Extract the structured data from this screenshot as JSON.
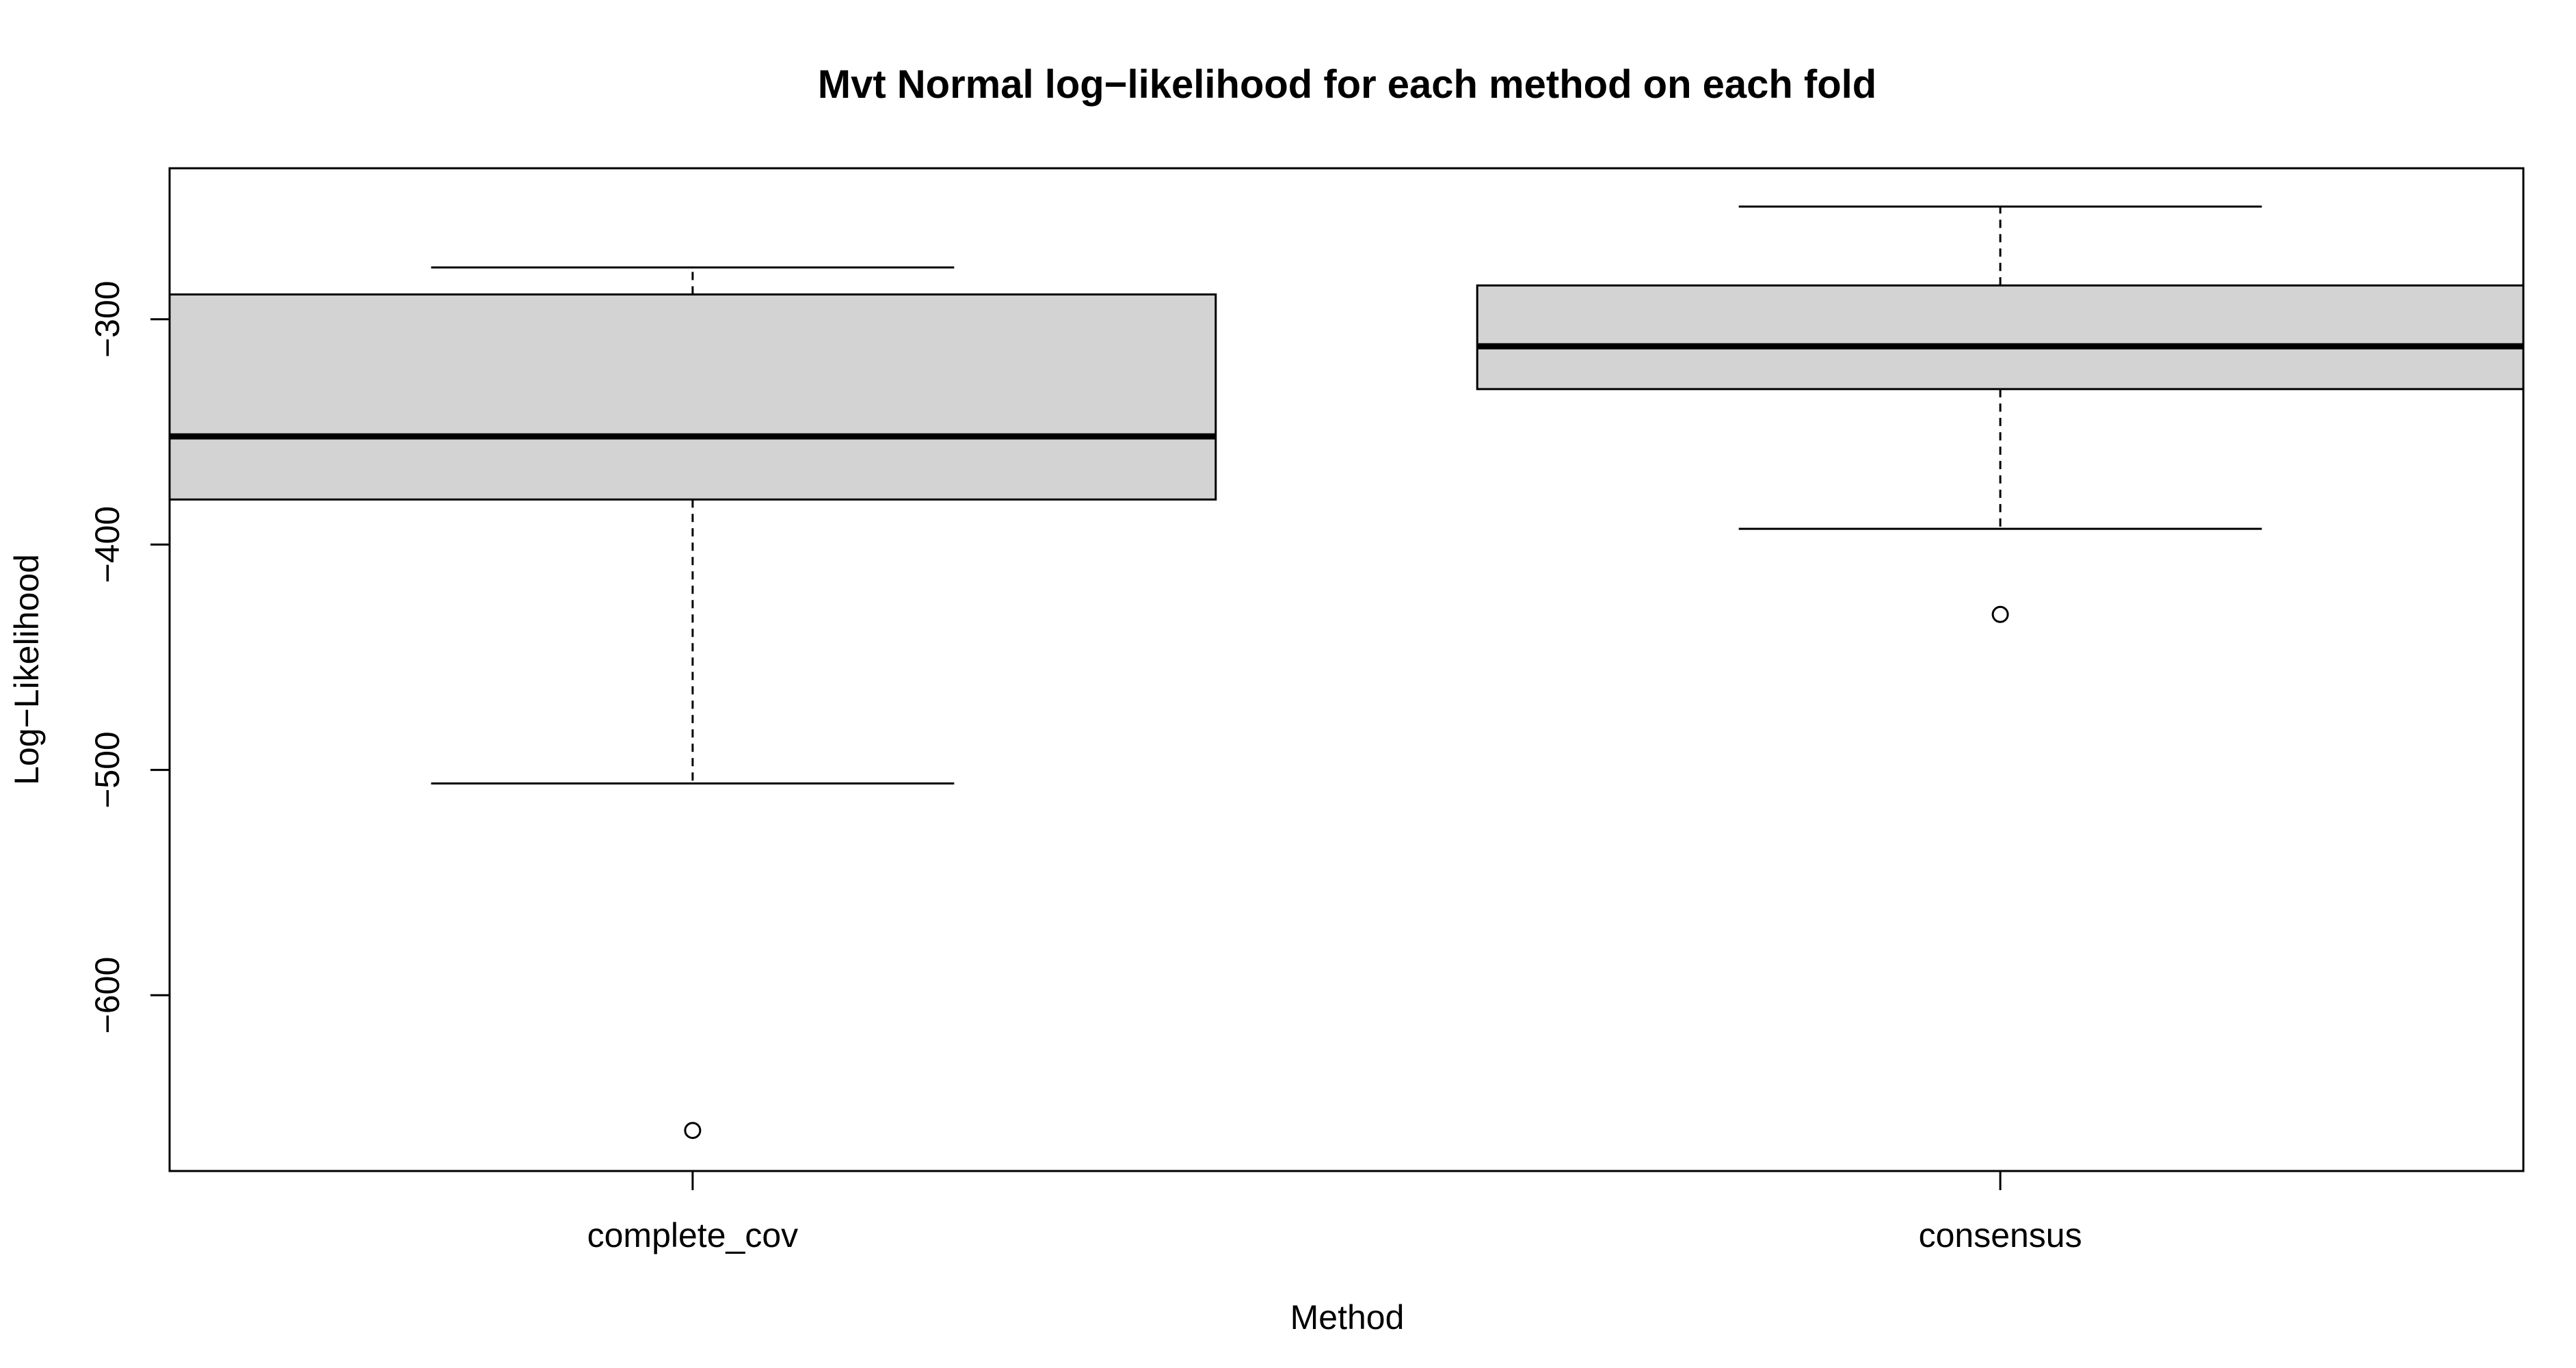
{
  "chart_data": {
    "type": "boxplot",
    "title": "Mvt Normal log−likelihood for each method on each fold",
    "xlabel": "Method",
    "ylabel": "Log−Likelihood",
    "categories": [
      "complete_cov",
      "consensus"
    ],
    "boxes": [
      {
        "category": "complete_cov",
        "whisker_low": -506,
        "q1": -380,
        "median": -352,
        "q3": -289,
        "whisker_high": -277,
        "outliers": [
          -660
        ]
      },
      {
        "category": "consensus",
        "whisker_low": -393,
        "q1": -331,
        "median": -312,
        "q3": -285,
        "whisker_high": -250,
        "outliers": [
          -431
        ]
      }
    ],
    "yticks": [
      -600,
      -500,
      -400,
      -300
    ],
    "ytick_labels": [
      "−600",
      "−500",
      "−400",
      "−300"
    ],
    "ylim": [
      -678,
      -233
    ],
    "box_fill": "#d3d3d3",
    "line_color": "#000000",
    "grid": false,
    "legend": "none"
  }
}
